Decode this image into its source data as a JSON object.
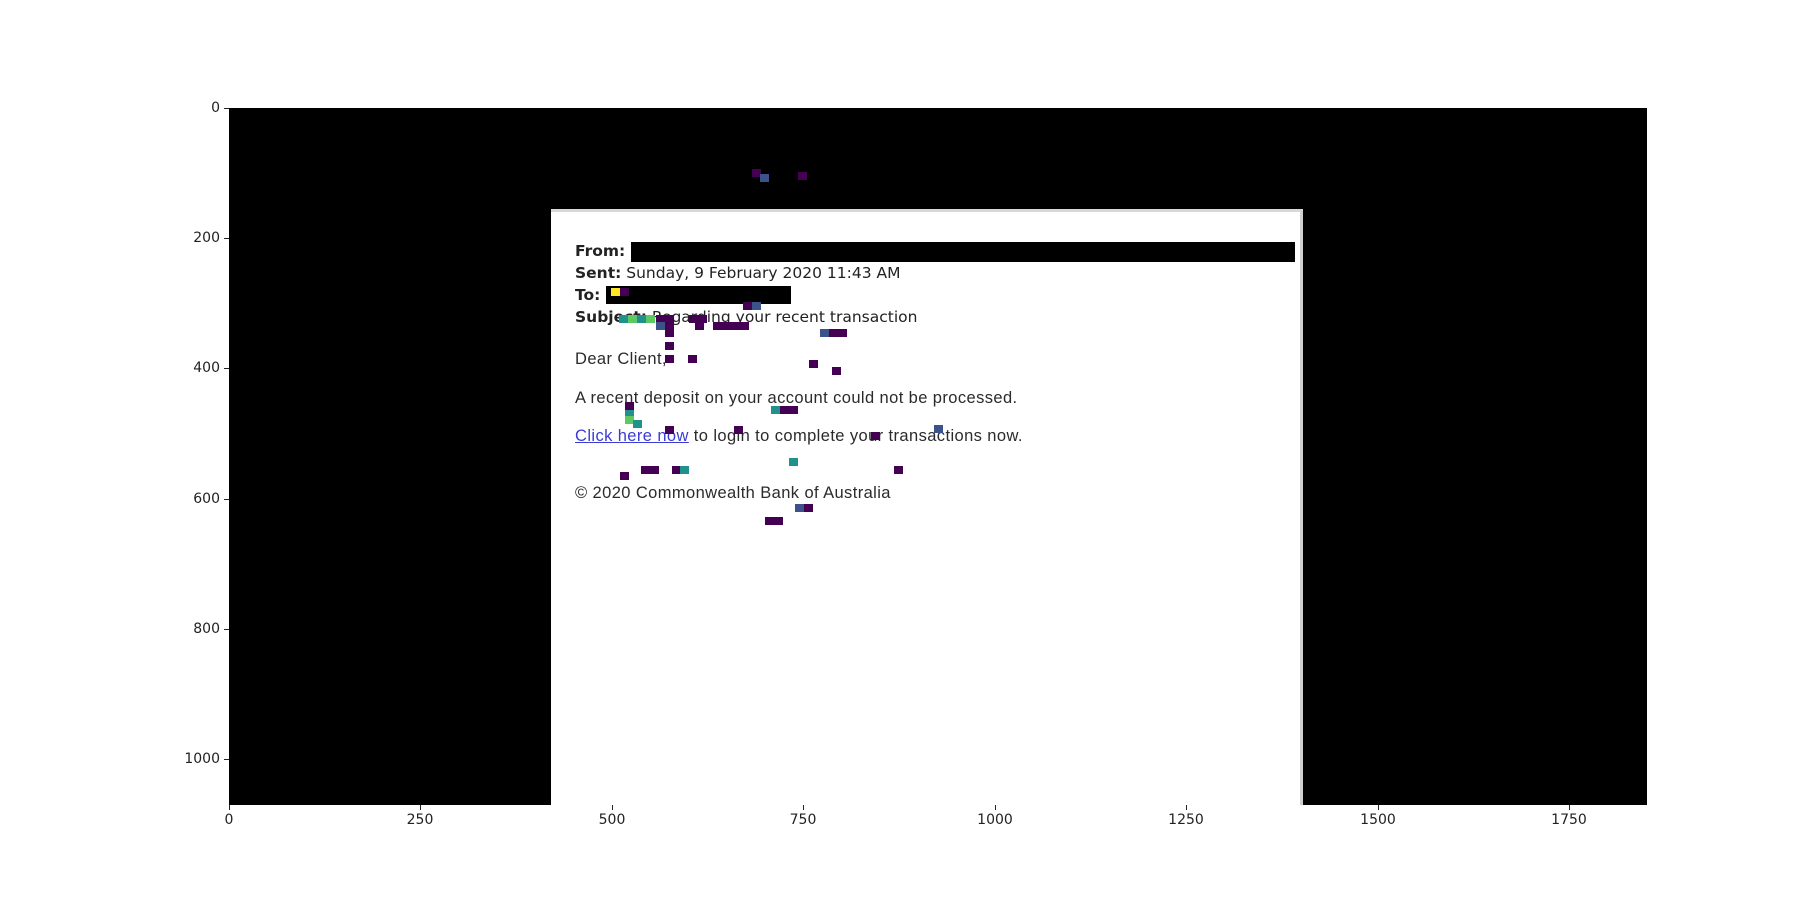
{
  "email": {
    "from_label": "From:",
    "sent_label": "Sent:",
    "sent_value": "Sunday, 9 February 2020 11:43 AM",
    "to_label": "To:",
    "subject_label": "Subject:",
    "subject_value": "Regarding your recent transaction",
    "greeting": "Dear Client,",
    "line1": "A recent deposit on your account could not be processed.",
    "link_text": "Click here now",
    "line2_rest": " to login to complete your transactions now.",
    "footer": "© 2020 Commonwealth Bank of Australia"
  },
  "axes": {
    "y_ticks": [
      "0",
      "200",
      "400",
      "600",
      "800",
      "1000"
    ],
    "x_ticks": [
      "0",
      "250",
      "500",
      "750",
      "1000",
      "1250",
      "1500",
      "1750"
    ]
  },
  "colors": {
    "link": "#3b3bd6",
    "noise_palette": [
      "#440154",
      "#3b528b",
      "#21918c",
      "#5ec962",
      "#fde725"
    ]
  }
}
